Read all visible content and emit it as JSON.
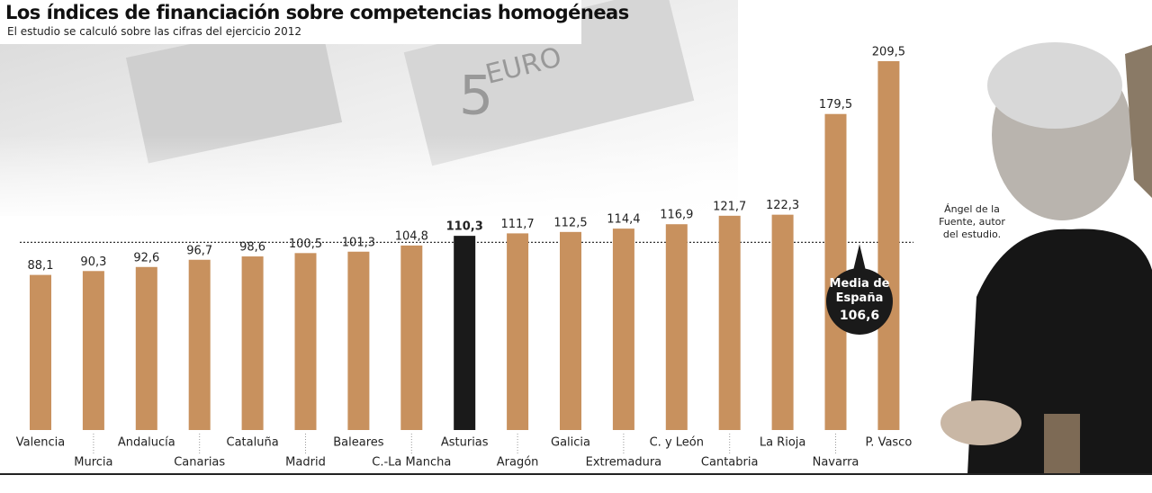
{
  "chart_data": {
    "type": "bar",
    "title": "Los índices de financiación sobre competencias homogéneas",
    "subtitle": "El estudio se calculó sobre las cifras del ejercicio 2012",
    "categories": [
      "Valencia",
      "Murcia",
      "Andalucía",
      "Canarias",
      "Cataluña",
      "Madrid",
      "Baleares",
      "C.-La Mancha",
      "Asturias",
      "Aragón",
      "Galicia",
      "Extremadura",
      "C. y León",
      "Cantabria",
      "La Rioja",
      "Navarra",
      "P. Vasco"
    ],
    "values": [
      88.1,
      90.3,
      92.6,
      96.7,
      98.6,
      100.5,
      101.3,
      104.8,
      110.3,
      111.7,
      112.5,
      114.4,
      116.9,
      121.7,
      122.3,
      179.5,
      209.5
    ],
    "value_labels": [
      "88,1",
      "90,3",
      "92,6",
      "96,7",
      "98,6",
      "100,5",
      "101,3",
      "104,8",
      "110,3",
      "111,7",
      "112,5",
      "114,4",
      "116,9",
      "121,7",
      "122,3",
      "179,5",
      "209,5"
    ],
    "color": "#c8915e",
    "highlight_index": 8,
    "highlight_color": "#1a1a1a",
    "average": {
      "label": "Media de España",
      "value": 106.6,
      "value_label": "106,6"
    },
    "photo_caption": "Ángel de la Fuente, autor del estudio."
  }
}
